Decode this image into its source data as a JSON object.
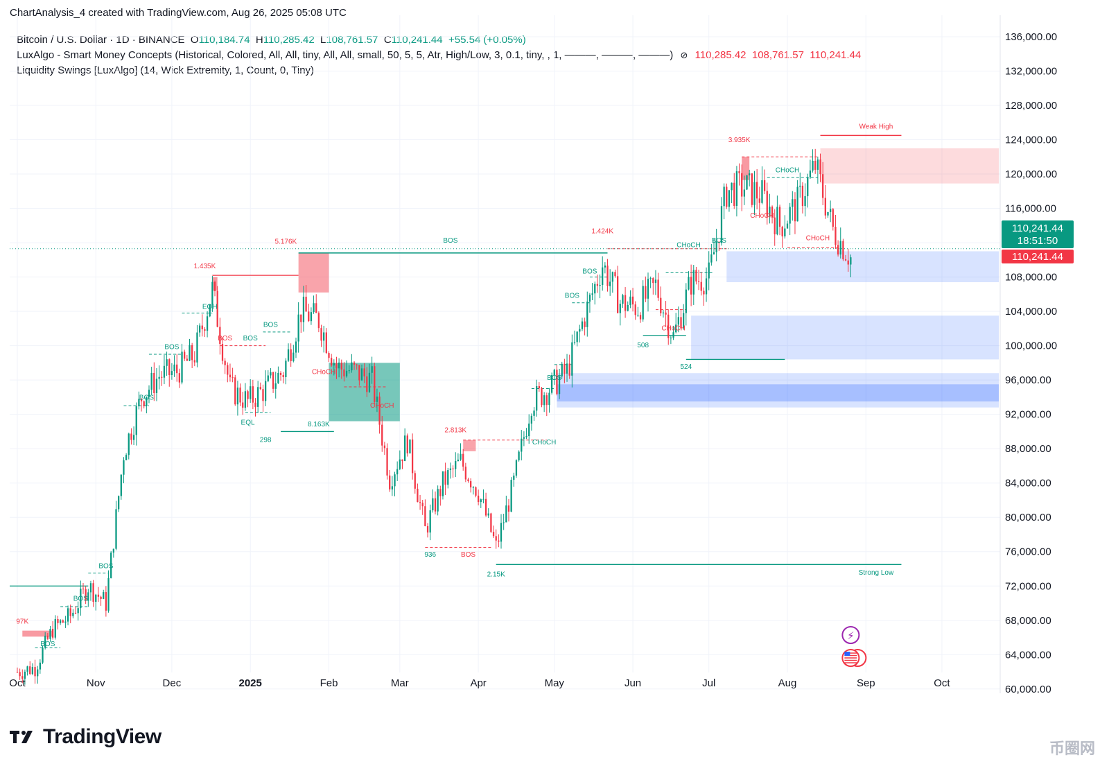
{
  "header": {
    "title": "ChartAnalysis_4 created with TradingView.com, Aug 26, 2025 05:08 UTC"
  },
  "legend": {
    "symbol": "Bitcoin / U.S. Dollar · 1D · BINANCE",
    "o_label": "O",
    "o_value": "110,184.74",
    "h_label": "H",
    "h_value": "110,285.42",
    "l_label": "L",
    "l_value": "108,761.57",
    "c_label": "C",
    "c_value": "110,241.44",
    "change": "+55.54 (+0.05%)",
    "indicator1": "LuxAlgo - Smart Money Concepts (Historical, Colored, All, All, tiny, All, All, small, 50, 5, 5, Atr, High/Low, 3, 0.1, tiny, , 1, ———, ———, ———)",
    "indicator1_icon": "eye-slash-icon",
    "indicator1_values": [
      "110,285.42",
      "108,761.57",
      "110,241.44"
    ],
    "indicator2": "Liquidity Swings [LuxAlgo] (14, Wick Extremity, 1, Count, 0, Tiny)"
  },
  "price_badges": {
    "last_price": "110,241.44",
    "countdown": "18:51:50",
    "close_price": "110,241.44"
  },
  "footer": {
    "brand": "TradingView",
    "watermark": "币圈网"
  },
  "colors": {
    "up": "#089981",
    "down": "#f23645",
    "bull_zone": "#2962ff",
    "bear_zone": "#f23645",
    "grid": "#f0f3fa"
  },
  "chart_data": {
    "type": "candlestick",
    "symbol": "BTCUSD",
    "interval": "1D",
    "ylim": [
      59500,
      138500
    ],
    "y_ticks": [
      "136,000.00",
      "132,000.00",
      "128,000.00",
      "124,000.00",
      "120,000.00",
      "116,000.00",
      "112,000.00",
      "108,000.00",
      "104,000.00",
      "100,000.00",
      "96,000.00",
      "92,000.00",
      "88,000.00",
      "84,000.00",
      "80,000.00",
      "76,000.00",
      "72,000.00",
      "68,000.00",
      "64,000.00",
      "60,000.00"
    ],
    "x_ticks": [
      "Oct",
      "Nov",
      "Dec",
      "2025",
      "Feb",
      "Mar",
      "Apr",
      "May",
      "Jun",
      "Jul",
      "Aug",
      "Sep",
      "Oct"
    ],
    "close_path_weekly": [
      [
        "2024-10-01",
        62000
      ],
      [
        "2024-10-08",
        62500
      ],
      [
        "2024-10-15",
        67000
      ],
      [
        "2024-10-22",
        68500
      ],
      [
        "2024-10-29",
        72000
      ],
      [
        "2024-11-05",
        70000
      ],
      [
        "2024-11-12",
        87500
      ],
      [
        "2024-11-19",
        94000
      ],
      [
        "2024-11-26",
        96500
      ],
      [
        "2024-12-03",
        97000
      ],
      [
        "2024-12-10",
        99000
      ],
      [
        "2024-12-17",
        106500
      ],
      [
        "2024-12-24",
        95000
      ],
      [
        "2024-12-31",
        93500
      ],
      [
        "2025-01-07",
        95000
      ],
      [
        "2025-01-14",
        97000
      ],
      [
        "2025-01-21",
        104000
      ],
      [
        "2025-01-28",
        103000
      ],
      [
        "2025-02-04",
        97500
      ],
      [
        "2025-02-11",
        97000
      ],
      [
        "2025-02-18",
        96000
      ],
      [
        "2025-02-25",
        84500
      ],
      [
        "2025-03-04",
        89000
      ],
      [
        "2025-03-11",
        78500
      ],
      [
        "2025-03-18",
        84000
      ],
      [
        "2025-03-25",
        86500
      ],
      [
        "2025-04-01",
        83000
      ],
      [
        "2025-04-08",
        76500
      ],
      [
        "2025-04-15",
        84000
      ],
      [
        "2025-04-22",
        93500
      ],
      [
        "2025-04-29",
        95000
      ],
      [
        "2025-05-06",
        97000
      ],
      [
        "2025-05-13",
        103500
      ],
      [
        "2025-05-20",
        109500
      ],
      [
        "2025-05-27",
        105000
      ],
      [
        "2025-06-03",
        104500
      ],
      [
        "2025-06-10",
        107000
      ],
      [
        "2025-06-17",
        101000
      ],
      [
        "2025-06-24",
        107500
      ],
      [
        "2025-07-01",
        108000
      ],
      [
        "2025-07-08",
        118000
      ],
      [
        "2025-07-15",
        118500
      ],
      [
        "2025-07-22",
        117500
      ],
      [
        "2025-07-29",
        114000
      ],
      [
        "2025-08-05",
        116500
      ],
      [
        "2025-08-12",
        121000
      ],
      [
        "2025-08-19",
        113500
      ],
      [
        "2025-08-26",
        110241.44
      ]
    ],
    "last": {
      "open": 110184.74,
      "high": 110285.42,
      "low": 108761.57,
      "close": 110241.44,
      "change": 55.54,
      "change_pct": 0.05
    },
    "structure_labels": [
      "BOS",
      "BOS",
      "BOS",
      "BOS",
      "BOS",
      "EQH",
      "BOS",
      "BOS",
      "EQL",
      "CHoCH",
      "BOS",
      "CHoCH",
      "BOS",
      "CHoCH",
      "BOS",
      "BOS",
      "BOS",
      "CHoCH",
      "CHoCH",
      "CHoCH",
      "CHoCH",
      "CHoCH",
      "BOS"
    ],
    "big_bos_label": "BOS",
    "volume_labels": [
      "1.435K",
      "5.176K",
      "97K",
      "298",
      "8.163K",
      "2.813K",
      "936",
      "2.15K",
      "1.424K",
      "508",
      "524",
      "3.935K"
    ],
    "weak_high_label": "Weak High",
    "strong_low_label": "Strong Low",
    "weak_high": 124500,
    "strong_low": 74500,
    "order_blocks": [
      {
        "kind": "bearish",
        "top": 123000,
        "bottom": 118900
      },
      {
        "kind": "bullish",
        "top": 111000,
        "bottom": 107400
      },
      {
        "kind": "bullish",
        "top": 103500,
        "bottom": 98400
      },
      {
        "kind": "bullish",
        "top": 96800,
        "bottom": 92800
      },
      {
        "kind": "bullish",
        "top": 95500,
        "bottom": 93500
      }
    ],
    "dotted_price_line": 111300
  }
}
